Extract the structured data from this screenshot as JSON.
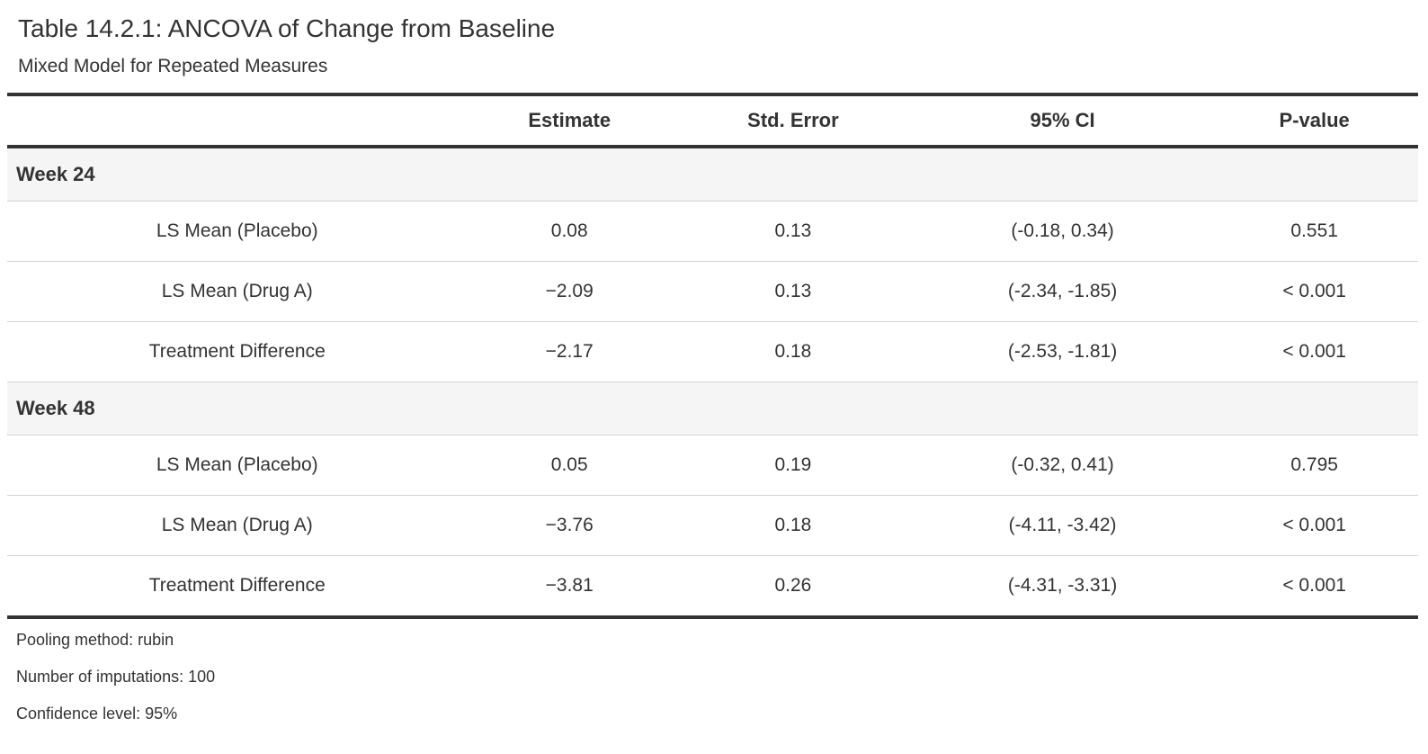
{
  "header": {
    "title": "Table 14.2.1: ANCOVA of Change from Baseline",
    "subtitle": "Mixed Model for Repeated Measures"
  },
  "table": {
    "columns": [
      "Estimate",
      "Std. Error",
      "95% CI",
      "P-value"
    ],
    "groups": [
      {
        "label": "Week 24",
        "rows": [
          {
            "label": "LS Mean (Placebo)",
            "estimate": "0.08",
            "std_error": "0.13",
            "ci": "(-0.18, 0.34)",
            "p_value": "0.551"
          },
          {
            "label": "LS Mean (Drug A)",
            "estimate": "−2.09",
            "std_error": "0.13",
            "ci": "(-2.34, -1.85)",
            "p_value": "< 0.001"
          },
          {
            "label": "Treatment Difference",
            "estimate": "−2.17",
            "std_error": "0.18",
            "ci": "(-2.53, -1.81)",
            "p_value": "< 0.001"
          }
        ]
      },
      {
        "label": "Week 48",
        "rows": [
          {
            "label": "LS Mean (Placebo)",
            "estimate": "0.05",
            "std_error": "0.19",
            "ci": "(-0.32, 0.41)",
            "p_value": "0.795"
          },
          {
            "label": "LS Mean (Drug A)",
            "estimate": "−3.76",
            "std_error": "0.18",
            "ci": "(-4.11, -3.42)",
            "p_value": "< 0.001"
          },
          {
            "label": "Treatment Difference",
            "estimate": "−3.81",
            "std_error": "0.26",
            "ci": "(-4.31, -3.31)",
            "p_value": "< 0.001"
          }
        ]
      }
    ],
    "footnotes": [
      "Pooling method: rubin",
      "Number of imputations: 100",
      "Confidence level: 95%"
    ]
  },
  "colors": {
    "text": "#333333",
    "heavy_border": "#333333",
    "light_border": "#d3d3d3",
    "group_band_bg": "#f5f5f6",
    "background": "#ffffff"
  }
}
